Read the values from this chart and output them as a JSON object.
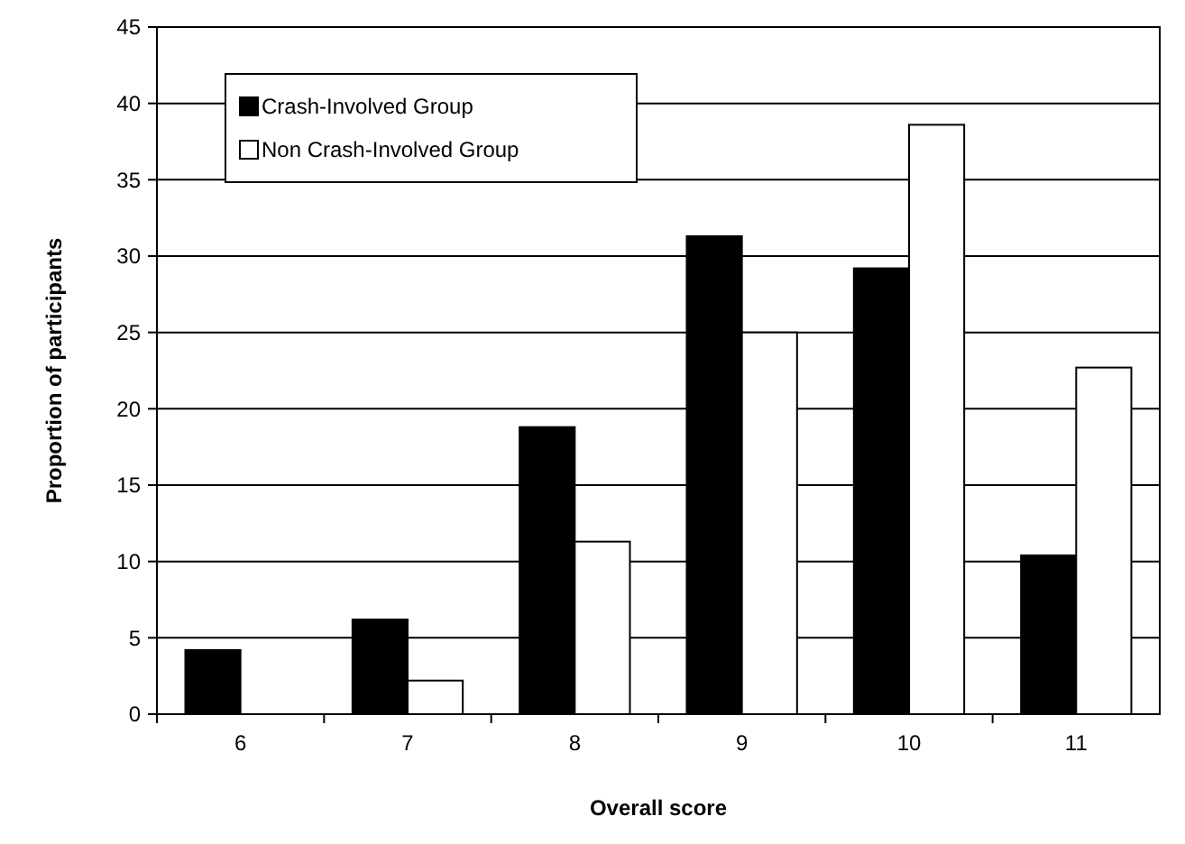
{
  "chart_data": {
    "type": "bar",
    "xlabel": "Overall score",
    "ylabel": "Proportion of participants",
    "categories": [
      "6",
      "7",
      "8",
      "9",
      "10",
      "11"
    ],
    "series": [
      {
        "name": "Crash-Involved Group",
        "color": "#000000",
        "values": [
          4.2,
          6.2,
          18.8,
          31.3,
          29.2,
          10.4
        ]
      },
      {
        "name": "Non Crash-Involved Group",
        "color": "#ffffff",
        "values": [
          0,
          2.2,
          11.3,
          25.0,
          38.6,
          22.7
        ]
      }
    ],
    "ylim": [
      0,
      45
    ],
    "yticks": [
      0,
      5,
      10,
      15,
      20,
      25,
      30,
      35,
      40,
      45
    ],
    "grid": "y",
    "legend": "top left"
  }
}
